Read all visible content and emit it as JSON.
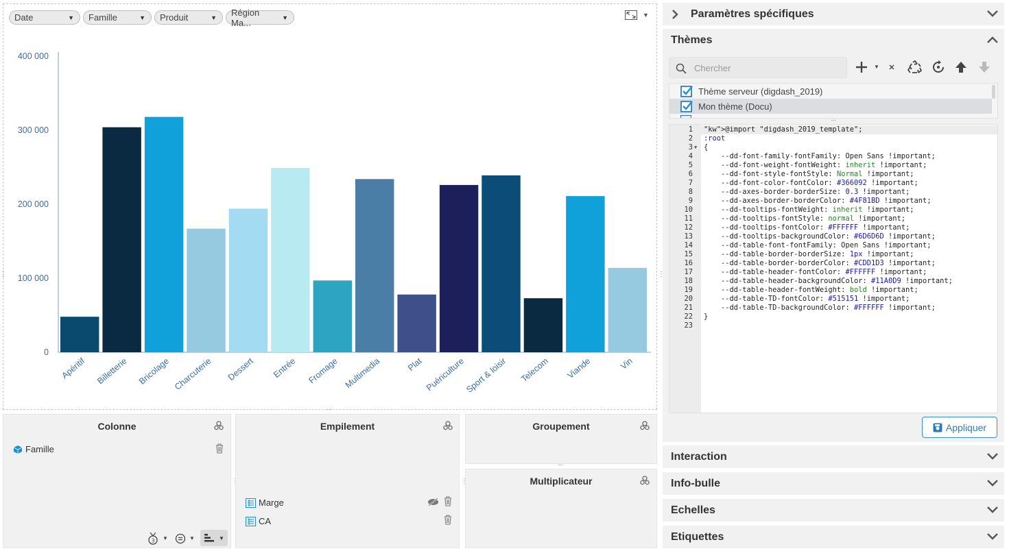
{
  "filters": [
    {
      "label": "Date"
    },
    {
      "label": "Famille"
    },
    {
      "label": "Produit"
    },
    {
      "label": "Région Ma..."
    }
  ],
  "chart_data": {
    "type": "bar",
    "categories": [
      "Apéritif",
      "Billetterie",
      "Bricolage",
      "Charcuterie",
      "Dessert",
      "Entrée",
      "Fromage",
      "Multimedia",
      "Plat",
      "Puériculture",
      "Sport & loisir",
      "Telecom",
      "Viande",
      "Vin"
    ],
    "values": [
      48000,
      304000,
      318000,
      167000,
      194000,
      249000,
      97000,
      234000,
      78000,
      226000,
      239000,
      73000,
      211000,
      114000
    ],
    "colors": [
      "#0a4a6e",
      "#0a2a42",
      "#10a0da",
      "#95cae0",
      "#a2dbf2",
      "#b8ebf1",
      "#2ea4c3",
      "#4b7ea7",
      "#3e4f8a",
      "#1c1f5a",
      "#0b4d78",
      "#0a2a42",
      "#10a0da",
      "#95cae0"
    ],
    "yticks": [
      "0",
      "100 000",
      "200 000",
      "300 000",
      "400 000"
    ],
    "ylim": [
      0,
      400000
    ],
    "title": "",
    "xlabel": "",
    "ylabel": ""
  },
  "zones": {
    "colonne": {
      "title": "Colonne",
      "items": [
        "Famille"
      ]
    },
    "empilement": {
      "title": "Empilement",
      "items": [
        "Marge",
        "CA"
      ]
    },
    "groupement": {
      "title": "Groupement"
    },
    "multiplicateur": {
      "title": "Multiplicateur"
    }
  },
  "sections": {
    "parametres": "Paramètres spécifiques",
    "themes": "Thèmes",
    "interaction": "Interaction",
    "infobulle": "Info-bulle",
    "echelles": "Echelles",
    "etiquettes": "Etiquettes"
  },
  "themes": {
    "search_placeholder": "Chercher",
    "items": [
      "Thème serveur (digdash_2019)",
      "Mon thème (Docu)"
    ],
    "apply_label": "Appliquer"
  },
  "code": {
    "lines": [
      "@import \"digdash_2019_template\";",
      ":root",
      "{",
      "    --dd-font-family-fontFamily: Open Sans !important;",
      "    --dd-font-weight-fontWeight: inherit !important;",
      "    --dd-font-style-fontStyle: Normal !important;",
      "    --dd-font-color-fontColor: #366092 !important;",
      "    --dd-axes-border-borderSize: 0.3 !important;",
      "    --dd-axes-border-borderColor: #4F81BD !important;",
      "    --dd-tooltips-fontWeight: inherit !important;",
      "    --dd-tooltips-fontStyle: normal !important;",
      "    --dd-tooltips-fontColor: #FFFFFF !important;",
      "    --dd-tooltips-backgroundColor: #6D6D6D !important;",
      "    --dd-table-font-fontFamily: Open Sans !important;",
      "    --dd-table-border-borderSize: 1px !important;",
      "    --dd-table-border-borderColor: #CDD1D3 !important;",
      "    --dd-table-header-fontColor: #FFFFFF !important;",
      "    --dd-table-header-backgroundColor: #11A0D9 !important;",
      "    --dd-table-header-fontWeight: bold !important;",
      "    --dd-table-TD-fontColor: #515151 !important;",
      "    --dd-table-TD-backgroundColor: #FFFFFF !important;",
      "}",
      ""
    ]
  },
  "colors": {
    "accent": "#2d7db3",
    "axis_text": "#3a6ea5"
  }
}
